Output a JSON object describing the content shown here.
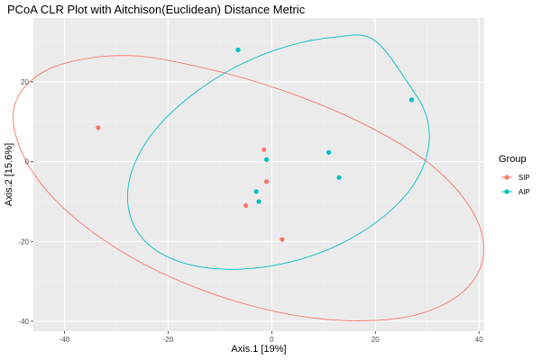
{
  "chart_data": {
    "type": "scatter",
    "title": "PCoA CLR Plot with Aitchison(Euclidean) Distance Metric",
    "xlabel": "Axis.1   [19%]",
    "ylabel": "Axis.2   [15.6%]",
    "xlim": [
      -46,
      41
    ],
    "ylim": [
      -42.5,
      36
    ],
    "xticks": [
      -40,
      -20,
      0,
      20,
      40
    ],
    "yticks": [
      -40,
      -20,
      0,
      20
    ],
    "grid": true,
    "legend": {
      "title": "Group",
      "position": "right"
    },
    "series": [
      {
        "name": "SIP",
        "color": "#F8766D",
        "points": [
          {
            "x": -33.5,
            "y": 8.5
          },
          {
            "x": -1.5,
            "y": 3.0
          },
          {
            "x": -1.0,
            "y": -5.0
          },
          {
            "x": -5.0,
            "y": -11.0
          },
          {
            "x": 2.0,
            "y": -19.5
          }
        ],
        "ellipse": [
          [
            -28.3,
            26.6
          ],
          [
            -12.5,
            23.3
          ],
          [
            3.5,
            17.2
          ],
          [
            18.7,
            8.8
          ],
          [
            31.0,
            -1.1
          ],
          [
            38.7,
            -12.4
          ],
          [
            40.9,
            -23.2
          ],
          [
            37.2,
            -32.3
          ],
          [
            28.4,
            -38.2
          ],
          [
            15.8,
            -39.9
          ],
          [
            1.1,
            -37.7
          ],
          [
            -15.2,
            -31.3
          ],
          [
            -30.1,
            -21.6
          ],
          [
            -42.0,
            -9.3
          ],
          [
            -48.6,
            3.5
          ],
          [
            -49.4,
            15.0
          ],
          [
            -42.5,
            23.5
          ]
        ]
      },
      {
        "name": "AIP",
        "color": "#00BFC4",
        "points": [
          {
            "x": -6.5,
            "y": 28.0
          },
          {
            "x": 27.0,
            "y": 15.5
          },
          {
            "x": -1.0,
            "y": 0.5
          },
          {
            "x": 11.0,
            "y": 2.3
          },
          {
            "x": 13.0,
            "y": -4.0
          },
          {
            "x": -3.0,
            "y": -7.5
          },
          {
            "x": -2.5,
            "y": -10.0
          }
        ],
        "ellipse": [
          [
            19.6,
            30.6
          ],
          [
            12.2,
            31.2
          ],
          [
            3.2,
            29.0
          ],
          [
            -6.4,
            24.1
          ],
          [
            -15.3,
            16.8
          ],
          [
            -22.6,
            7.8
          ],
          [
            -26.9,
            -2.0
          ],
          [
            -27.7,
            -11.3
          ],
          [
            -24.9,
            -19.3
          ],
          [
            -18.8,
            -24.6
          ],
          [
            -10.1,
            -26.9
          ],
          [
            0.1,
            -26.1
          ],
          [
            10.4,
            -22.3
          ],
          [
            19.4,
            -15.9
          ],
          [
            26.3,
            -7.7
          ],
          [
            29.9,
            1.4
          ],
          [
            30.0,
            10.7
          ],
          [
            26.5,
            19.3
          ]
        ]
      }
    ]
  }
}
